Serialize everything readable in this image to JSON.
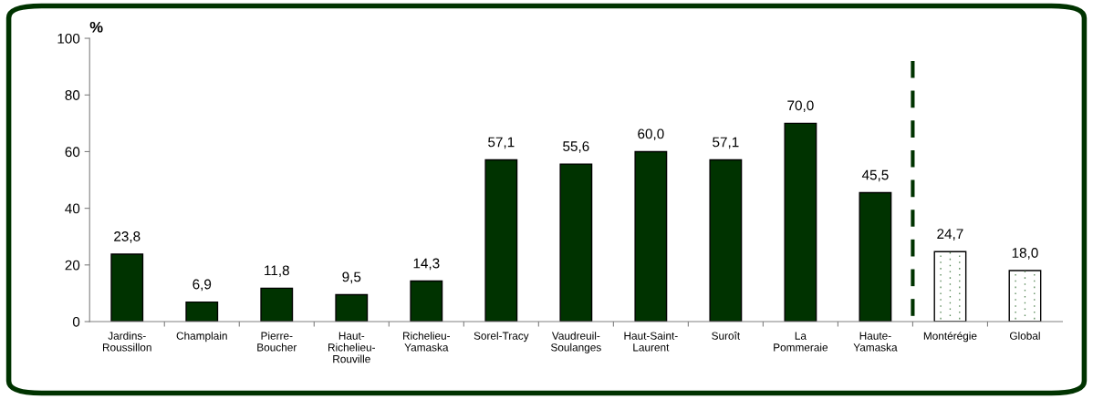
{
  "chart_data": {
    "type": "bar",
    "ylabel": "%",
    "categories": [
      "Jardins-\nRoussillon",
      "Champlain",
      "Pierre-\nBoucher",
      "Haut-\nRichelieu-\nRouville",
      "Richelieu-\nYamaska",
      "Sorel-Tracy",
      "Vaudreuil-\nSoulanges",
      "Haut-Saint-\nLaurent",
      "Suroît",
      "La\nPommeraie",
      "Haute-\nYamaska",
      "Montérégie",
      "Global"
    ],
    "values": [
      23.8,
      6.9,
      11.8,
      9.5,
      14.3,
      57.1,
      55.6,
      60.0,
      57.1,
      70.0,
      45.5,
      24.7,
      18.0
    ],
    "value_labels": [
      "23,8",
      "6,9",
      "11,8",
      "9,5",
      "14,3",
      "57,1",
      "55,6",
      "60,0",
      "57,1",
      "70,0",
      "45,5",
      "24,7",
      "18,0"
    ],
    "colors": [
      "#003300",
      "#003300",
      "#003300",
      "#003300",
      "#003300",
      "#003300",
      "#003300",
      "#003300",
      "#003300",
      "#003300",
      "#003300",
      "#ffffff",
      "#ffffff"
    ],
    "ylim": [
      0,
      100
    ],
    "yticks": [
      0,
      20,
      40,
      60,
      80,
      100
    ],
    "grid": false,
    "legend": false
  }
}
